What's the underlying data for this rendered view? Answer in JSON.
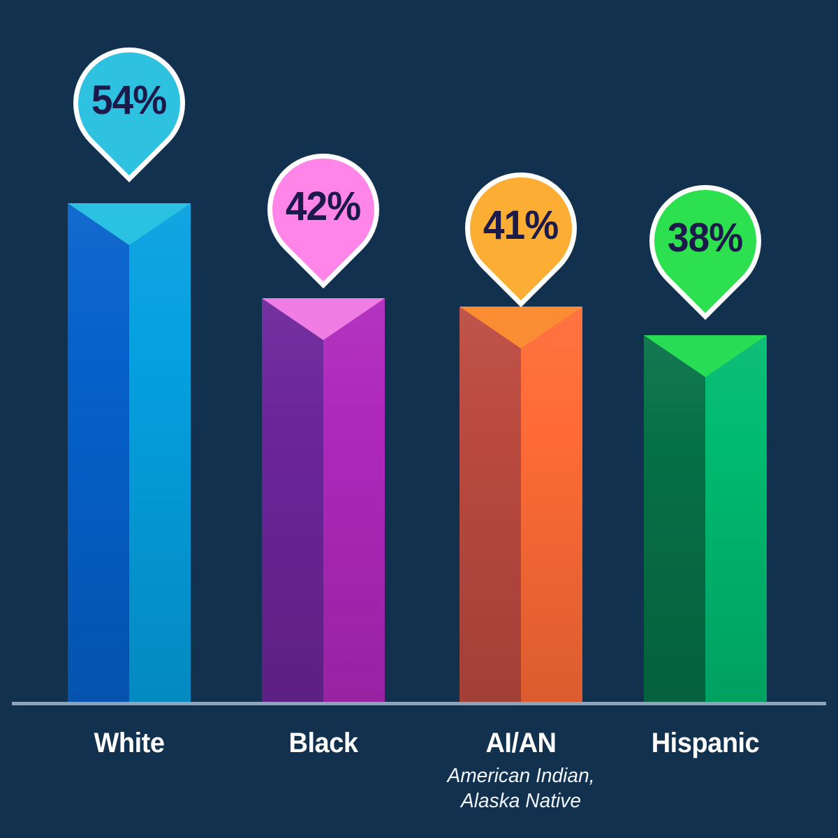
{
  "background_color": "#12314F",
  "axis_color": "#8DA4BC",
  "chart_data": {
    "type": "bar",
    "title": "",
    "xlabel": "",
    "ylabel": "",
    "unit": "percent",
    "ylim": [
      0,
      60
    ],
    "grid": false,
    "legend": "none",
    "categories": [
      "White",
      "Black",
      "AI/AN",
      "Hispanic"
    ],
    "values": [
      54,
      42,
      41,
      38
    ],
    "value_text_color": "#1B1A4B",
    "label_text_color": "#FFFFFF",
    "bars": [
      {
        "label": "White",
        "sublabel": "",
        "value": 54,
        "value_label": "54%",
        "colors": {
          "left": "#0561CB",
          "right": "#04A0E0",
          "top": "#2BC1E2",
          "balloon": "#2EC1E0"
        }
      },
      {
        "label": "Black",
        "sublabel": "",
        "value": 42,
        "value_label": "42%",
        "colors": {
          "left": "#6C2599",
          "right": "#AF28BC",
          "top": "#F07DE3",
          "balloon": "#FF85E9"
        }
      },
      {
        "label": "AI/AN",
        "sublabel": "American Indian,\nAlaska Native",
        "value": 41,
        "value_label": "41%",
        "colors": {
          "left": "#BB4A40",
          "right": "#FF6B36",
          "top": "#FA8C33",
          "balloon": "#FBAE33"
        }
      },
      {
        "label": "Hispanic",
        "sublabel": "",
        "value": 38,
        "value_label": "38%",
        "colors": {
          "left": "#067047",
          "right": "#00BA70",
          "top": "#28DC55",
          "balloon": "#2CE04F"
        }
      }
    ]
  }
}
